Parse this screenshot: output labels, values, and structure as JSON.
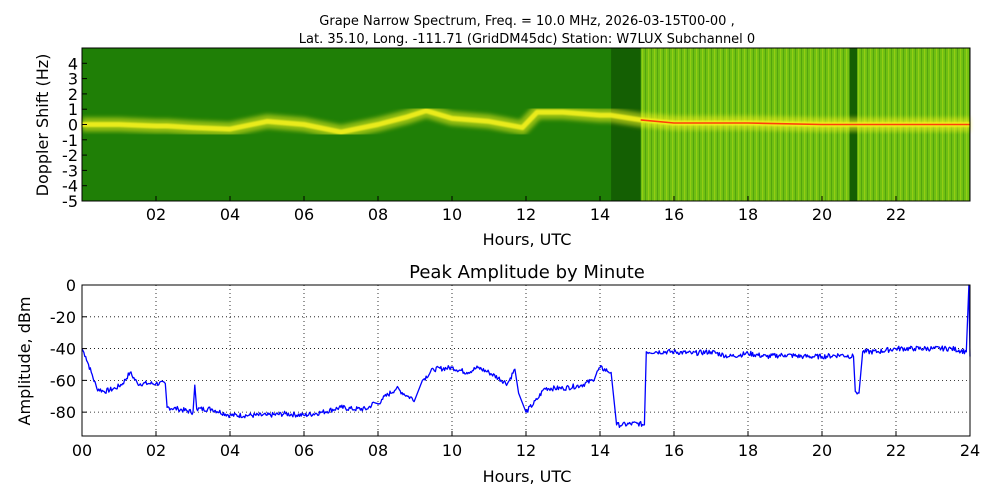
{
  "title": {
    "line1": "Grape Narrow Spectrum, Freq. = 10.0 MHz, 2026-03-15T00-00 ,",
    "line2": "Lat.  35.10, Long. -111.71 (GridDM45dc) Station: W7LUX Subchannel 0"
  },
  "colors": {
    "background": "#1f7f06",
    "background_bright": "#6fbf12",
    "signal": "#f4f11e",
    "signal_core": "#ff2a0a",
    "line": "#0000ff",
    "grid": "#000000"
  },
  "chart_data": [
    {
      "type": "heatmap",
      "title": "",
      "xlabel": "Hours, UTC",
      "ylabel": "Doppler Shift (Hz)",
      "xlim": [
        0,
        24
      ],
      "ylim": [
        -5,
        5
      ],
      "x_ticks": [
        "02",
        "04",
        "06",
        "08",
        "10",
        "12",
        "14",
        "16",
        "18",
        "20",
        "22"
      ],
      "y_ticks": [
        "4",
        "3",
        "2",
        "1",
        "0",
        "-1",
        "-2",
        "-3",
        "-4",
        "-5"
      ],
      "doppler_trace": {
        "x": [
          0,
          1,
          2,
          2.3,
          3,
          4,
          5,
          6,
          7,
          8,
          8.8,
          9.3,
          10,
          11,
          11.9,
          12.3,
          13,
          14,
          14.3,
          15.1,
          16,
          18,
          20,
          22,
          24
        ],
        "y": [
          0.0,
          0.0,
          -0.1,
          -0.1,
          -0.2,
          -0.3,
          0.2,
          0.0,
          -0.5,
          0.0,
          0.5,
          0.9,
          0.4,
          0.2,
          -0.2,
          0.8,
          0.8,
          0.6,
          0.6,
          0.3,
          0.1,
          0.1,
          0.0,
          0.0,
          0.0
        ]
      },
      "dark_bands": [
        [
          14.3,
          15.1
        ],
        [
          20.75,
          20.95
        ]
      ],
      "bright_span": [
        15.1,
        24
      ],
      "grid": false
    },
    {
      "type": "line",
      "title": "Peak Amplitude by Minute",
      "xlabel": "Hours, UTC",
      "ylabel": "Amplitude, dBm",
      "xlim": [
        0,
        24
      ],
      "ylim": [
        -95,
        0
      ],
      "x_ticks": [
        "00",
        "02",
        "04",
        "06",
        "08",
        "10",
        "12",
        "14",
        "16",
        "18",
        "20",
        "22",
        "24"
      ],
      "y_ticks": [
        "0",
        "-20",
        "-40",
        "-60",
        "-80"
      ],
      "grid": true,
      "series": [
        {
          "x": [
            0,
            0.1,
            0.25,
            0.4,
            0.6,
            0.9,
            1.1,
            1.3,
            1.5,
            1.8,
            2.0,
            2.25,
            2.3,
            2.6,
            3.0,
            3.05,
            3.1,
            3.5,
            4.0,
            4.5,
            5.0,
            5.5,
            6.0,
            6.5,
            7.0,
            7.3,
            7.7,
            7.9,
            8.0,
            8.1,
            8.5,
            8.8,
            9.0,
            9.2,
            9.5,
            10.0,
            10.4,
            10.7,
            11.0,
            11.5,
            11.7,
            11.8,
            12.0,
            12.3,
            12.5,
            13.0,
            13.5,
            13.8,
            14.0,
            14.3,
            14.45,
            14.6,
            15.0,
            15.2,
            15.25,
            15.5,
            16.0,
            16.5,
            17.0,
            17.5,
            18.0,
            18.5,
            19.0,
            19.5,
            20.0,
            20.5,
            20.85,
            20.9,
            21.0,
            21.1,
            21.5,
            22.0,
            22.5,
            23.0,
            23.5,
            23.9,
            23.97,
            24.0
          ],
          "y": [
            -40,
            -45,
            -55,
            -65,
            -67,
            -65,
            -62,
            -55,
            -62,
            -62,
            -62,
            -62,
            -77,
            -78,
            -80,
            -63,
            -78,
            -78,
            -82,
            -82,
            -82,
            -81,
            -82,
            -80,
            -77,
            -78,
            -78,
            -74,
            -75,
            -72,
            -65,
            -70,
            -72,
            -60,
            -53,
            -52,
            -55,
            -52,
            -55,
            -62,
            -53,
            -68,
            -80,
            -72,
            -65,
            -65,
            -63,
            -60,
            -52,
            -55,
            -88,
            -88,
            -87,
            -88,
            -42,
            -42,
            -42,
            -43,
            -42,
            -45,
            -43,
            -45,
            -44,
            -45,
            -45,
            -44,
            -45,
            -67,
            -68,
            -42,
            -42,
            -40,
            -40,
            -40,
            -40,
            -42,
            0,
            -45
          ]
        }
      ]
    }
  ]
}
